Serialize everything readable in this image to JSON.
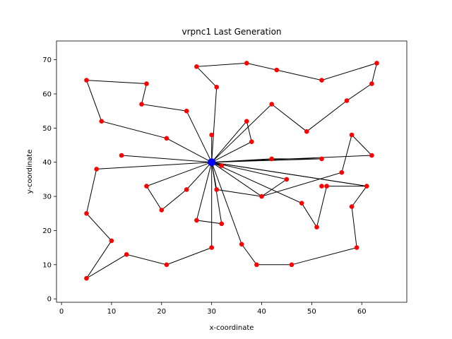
{
  "chart_data": {
    "type": "scatter",
    "title": "vrpnc1 Last Generation",
    "xlabel": "x-coordinate",
    "ylabel": "y-coordinate",
    "xlim": [
      -1,
      69
    ],
    "ylim": [
      -1,
      75.5
    ],
    "xticks": [
      0,
      10,
      20,
      30,
      40,
      50,
      60
    ],
    "yticks": [
      0,
      10,
      20,
      30,
      40,
      50,
      60,
      70
    ],
    "grid": false,
    "depot": {
      "x": 30,
      "y": 40
    },
    "routes": [
      [
        [
          30,
          40
        ],
        [
          17,
          33
        ],
        [
          20,
          26
        ],
        [
          25,
          32
        ],
        [
          30,
          40
        ]
      ],
      [
        [
          30,
          40
        ],
        [
          27,
          23
        ],
        [
          32,
          22
        ],
        [
          30,
          40
        ]
      ],
      [
        [
          30,
          40
        ],
        [
          30,
          15
        ],
        [
          21,
          10
        ],
        [
          13,
          13
        ],
        [
          5,
          6
        ],
        [
          10,
          17
        ],
        [
          5,
          25
        ],
        [
          7,
          38
        ],
        [
          30,
          40
        ]
      ],
      [
        [
          30,
          40
        ],
        [
          12,
          42
        ],
        [
          30,
          40
        ]
      ],
      [
        [
          30,
          40
        ],
        [
          21,
          47
        ],
        [
          8,
          52
        ],
        [
          5,
          64
        ],
        [
          17,
          63
        ],
        [
          16,
          57
        ],
        [
          25,
          55
        ],
        [
          30,
          40
        ]
      ],
      [
        [
          30,
          40
        ],
        [
          30,
          48
        ],
        [
          30,
          40
        ]
      ],
      [
        [
          30,
          40
        ],
        [
          31,
          62
        ],
        [
          27,
          68
        ],
        [
          37,
          69
        ],
        [
          43,
          67
        ],
        [
          52,
          64
        ],
        [
          63,
          69
        ],
        [
          62,
          63
        ],
        [
          57,
          58
        ],
        [
          49,
          49
        ],
        [
          42,
          57
        ],
        [
          30,
          40
        ]
      ],
      [
        [
          30,
          40
        ],
        [
          37,
          52
        ],
        [
          38,
          46
        ],
        [
          30,
          40
        ]
      ],
      [
        [
          30,
          40
        ],
        [
          42,
          41
        ],
        [
          52,
          41
        ],
        [
          30,
          40
        ]
      ],
      [
        [
          30,
          40
        ],
        [
          62,
          42
        ],
        [
          58,
          48
        ],
        [
          56,
          37
        ],
        [
          40,
          30
        ],
        [
          45,
          35
        ],
        [
          30,
          40
        ]
      ],
      [
        [
          30,
          40
        ],
        [
          31,
          32
        ],
        [
          40,
          30
        ],
        [
          30,
          40
        ]
      ],
      [
        [
          30,
          40
        ],
        [
          48,
          28
        ],
        [
          51,
          21
        ],
        [
          53,
          33
        ],
        [
          61,
          33
        ],
        [
          30,
          40
        ]
      ],
      [
        [
          30,
          40
        ],
        [
          36,
          16
        ],
        [
          39,
          10
        ],
        [
          46,
          10
        ],
        [
          59,
          15
        ],
        [
          58,
          27
        ],
        [
          61,
          33
        ],
        [
          30,
          40
        ]
      ],
      [
        [
          30,
          40
        ],
        [
          32,
          39
        ],
        [
          30,
          40
        ]
      ]
    ],
    "customers": [
      [
        37,
        52
      ],
      [
        49,
        49
      ],
      [
        52,
        64
      ],
      [
        20,
        26
      ],
      [
        40,
        30
      ],
      [
        21,
        47
      ],
      [
        17,
        63
      ],
      [
        31,
        62
      ],
      [
        52,
        33
      ],
      [
        51,
        21
      ],
      [
        42,
        41
      ],
      [
        31,
        32
      ],
      [
        5,
        25
      ],
      [
        12,
        42
      ],
      [
        36,
        16
      ],
      [
        52,
        41
      ],
      [
        27,
        23
      ],
      [
        17,
        33
      ],
      [
        13,
        13
      ],
      [
        57,
        58
      ],
      [
        62,
        42
      ],
      [
        42,
        57
      ],
      [
        16,
        57
      ],
      [
        8,
        52
      ],
      [
        7,
        38
      ],
      [
        27,
        68
      ],
      [
        30,
        48
      ],
      [
        43,
        67
      ],
      [
        58,
        48
      ],
      [
        58,
        27
      ],
      [
        37,
        69
      ],
      [
        38,
        46
      ],
      [
        46,
        10
      ],
      [
        61,
        33
      ],
      [
        62,
        63
      ],
      [
        63,
        69
      ],
      [
        32,
        22
      ],
      [
        45,
        35
      ],
      [
        59,
        15
      ],
      [
        5,
        6
      ],
      [
        10,
        17
      ],
      [
        21,
        10
      ],
      [
        5,
        64
      ],
      [
        30,
        15
      ],
      [
        39,
        10
      ],
      [
        32,
        39
      ],
      [
        25,
        32
      ],
      [
        25,
        55
      ],
      [
        48,
        28
      ],
      [
        56,
        37
      ],
      [
        53,
        33
      ],
      [
        30,
        40
      ]
    ],
    "colors": {
      "route": "#000000",
      "customer": "#ff0000",
      "depot": "#0000ff"
    }
  }
}
